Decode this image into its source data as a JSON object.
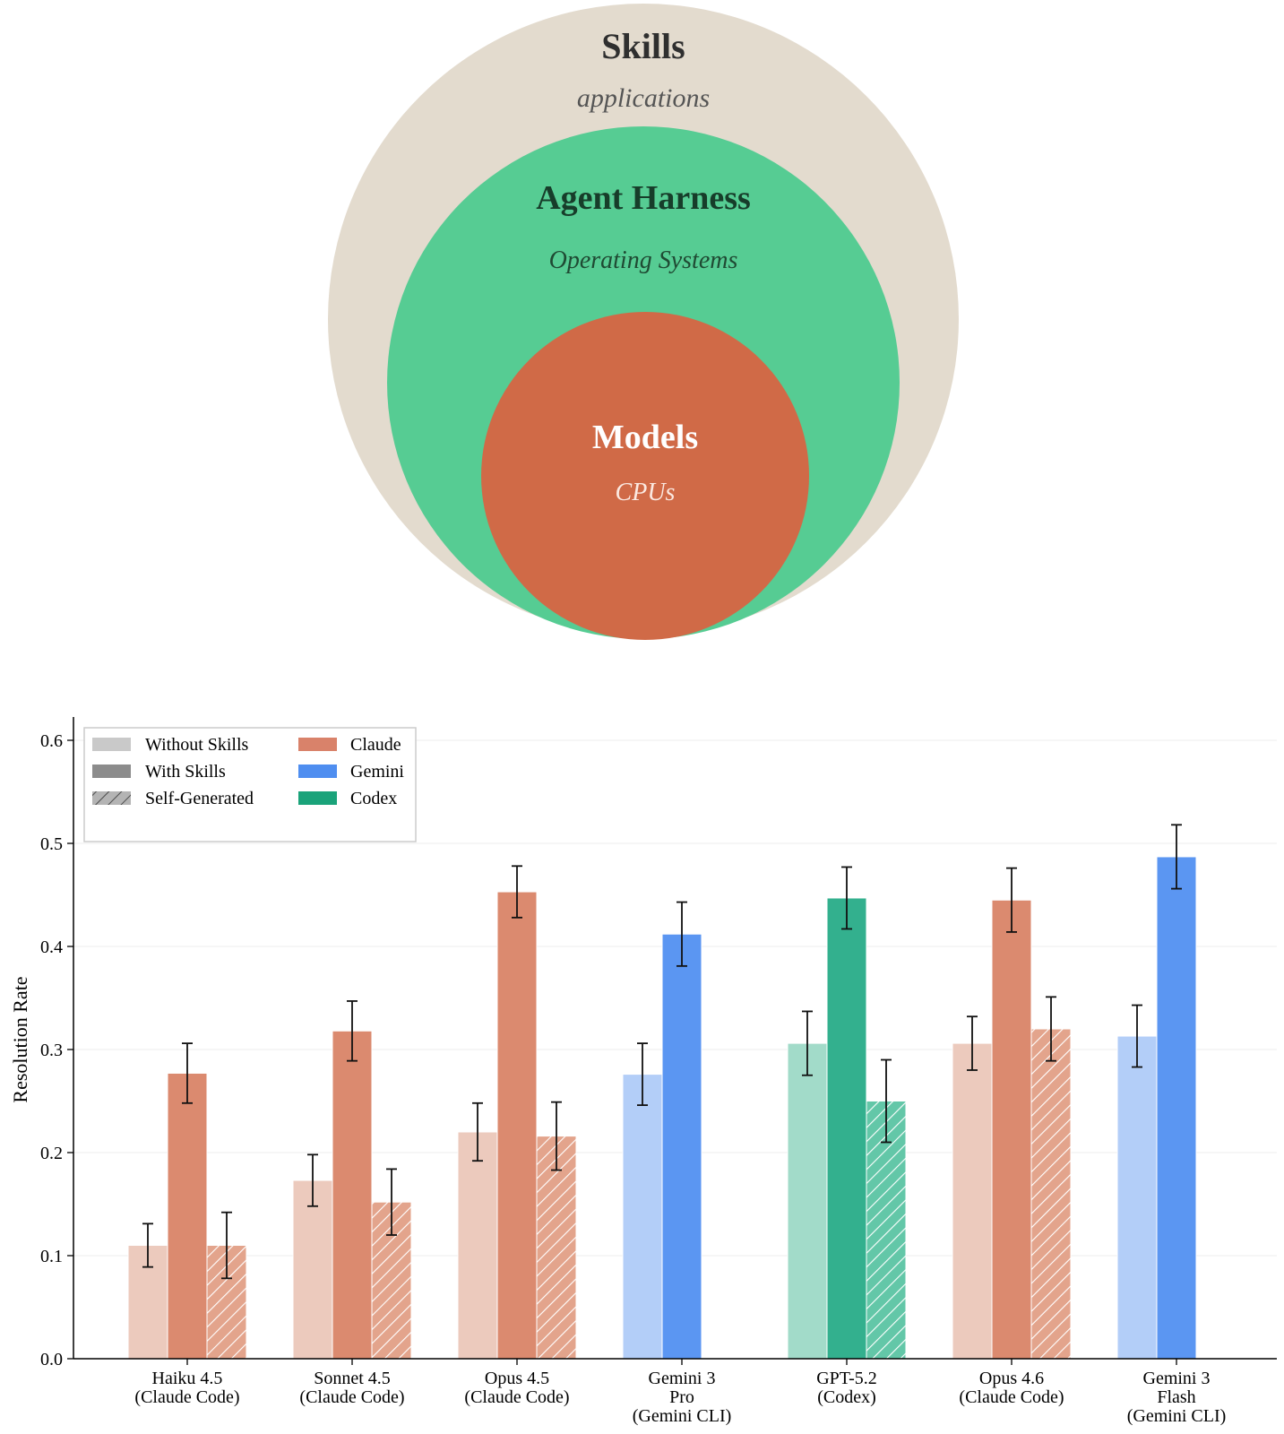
{
  "diagram": {
    "layers": [
      {
        "title": "Skills",
        "subtitle": "applications",
        "color": "#e3dbce",
        "title_color": "#2f2f2f",
        "subtitle_color": "#555555"
      },
      {
        "title": "Agent Harness",
        "subtitle": "Operating Systems",
        "color": "#56cc93",
        "title_color": "#173d2a",
        "subtitle_color": "#1f4a33"
      },
      {
        "title": "Models",
        "subtitle": "CPUs",
        "color": "#d06a47",
        "title_color": "#ffffff",
        "subtitle_color": "#fbe9e1"
      }
    ]
  },
  "chart_data": {
    "type": "bar",
    "ylabel": "Resolution Rate",
    "ylim": [
      0.0,
      0.62
    ],
    "yticks": [
      "0.0",
      "0.1",
      "0.2",
      "0.3",
      "0.4",
      "0.5",
      "0.6"
    ],
    "grid": "horizontal, faint",
    "legend": {
      "placement": "top-left",
      "condition_entries": [
        {
          "label": "Without Skills",
          "style": "light"
        },
        {
          "label": "With Skills",
          "style": "solid"
        },
        {
          "label": "Self-Generated",
          "style": "hatched"
        }
      ],
      "family_entries": [
        {
          "label": "Claude",
          "color": "#d9826a"
        },
        {
          "label": "Gemini",
          "color": "#4f8ef0"
        },
        {
          "label": "Codex",
          "color": "#1aa37a"
        }
      ]
    },
    "colors": {
      "claude": {
        "without": "#eccabd",
        "with": "#db8a6f",
        "self": "#e3a48c"
      },
      "gemini": {
        "without": "#b3cef8",
        "with": "#5b96f2",
        "self": "#8eb6f6"
      },
      "codex": {
        "without": "#a2dbc9",
        "with": "#33b08e",
        "self": "#63c7a8"
      }
    },
    "categories": [
      {
        "label": [
          "Haiku 4.5",
          "(Claude Code)"
        ],
        "family": "claude",
        "without": 0.11,
        "without_err": 0.021,
        "with": 0.277,
        "with_err": 0.029,
        "self": 0.11,
        "self_err": 0.032
      },
      {
        "label": [
          "Sonnet 4.5",
          "(Claude Code)"
        ],
        "family": "claude",
        "without": 0.173,
        "without_err": 0.025,
        "with": 0.318,
        "with_err": 0.029,
        "self": 0.152,
        "self_err": 0.032
      },
      {
        "label": [
          "Opus 4.5",
          "(Claude Code)"
        ],
        "family": "claude",
        "without": 0.22,
        "without_err": 0.028,
        "with": 0.453,
        "with_err": 0.025,
        "self": 0.216,
        "self_err": 0.033
      },
      {
        "label": [
          "Gemini 3",
          "Pro",
          "(Gemini CLI)"
        ],
        "family": "gemini",
        "without": 0.276,
        "without_err": 0.03,
        "with": 0.412,
        "with_err": 0.031,
        "self": null,
        "self_err": null
      },
      {
        "label": [
          "GPT-5.2",
          "(Codex)"
        ],
        "family": "codex",
        "without": 0.306,
        "without_err": 0.031,
        "with": 0.447,
        "with_err": 0.03,
        "self": 0.25,
        "self_err": 0.04
      },
      {
        "label": [
          "Opus 4.6",
          "(Claude Code)"
        ],
        "family": "claude",
        "without": 0.306,
        "without_err": 0.026,
        "with": 0.445,
        "with_err": 0.031,
        "self": 0.32,
        "self_err": 0.031
      },
      {
        "label": [
          "Gemini 3",
          "Flash",
          "(Gemini CLI)"
        ],
        "family": "gemini",
        "without": 0.313,
        "without_err": 0.03,
        "with": 0.487,
        "with_err": 0.031,
        "self": null,
        "self_err": null
      }
    ]
  }
}
